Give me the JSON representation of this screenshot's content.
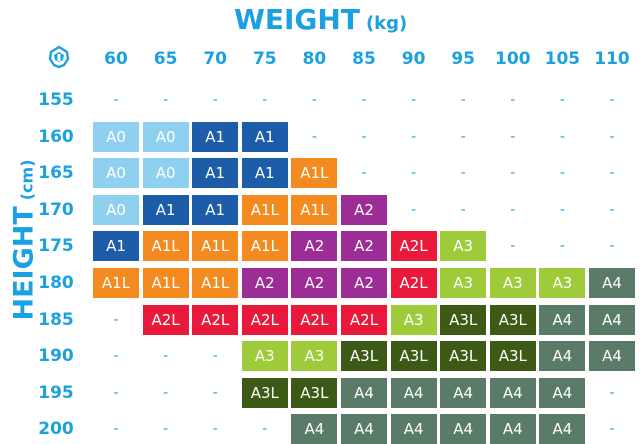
{
  "title": {
    "main": "WEIGHT",
    "unit": "(kg)"
  },
  "ytitle": {
    "main": "HEIGHT",
    "unit": "(cm)"
  },
  "logo_icon": "helmet-icon",
  "columns": [
    "60",
    "65",
    "70",
    "75",
    "80",
    "85",
    "90",
    "95",
    "100",
    "105",
    "110"
  ],
  "rows": [
    {
      "height": "155",
      "cells": [
        "-",
        "-",
        "-",
        "-",
        "-",
        "-",
        "-",
        "-",
        "-",
        "-",
        "-"
      ]
    },
    {
      "height": "160",
      "cells": [
        "A0",
        "A0",
        "A1",
        "A1",
        "-",
        "-",
        "-",
        "-",
        "-",
        "-",
        "-"
      ]
    },
    {
      "height": "165",
      "cells": [
        "A0",
        "A0",
        "A1",
        "A1",
        "A1L",
        "-",
        "-",
        "-",
        "-",
        "-",
        "-"
      ]
    },
    {
      "height": "170",
      "cells": [
        "A0",
        "A1",
        "A1",
        "A1L",
        "A1L",
        "A2",
        "-",
        "-",
        "-",
        "-",
        "-"
      ]
    },
    {
      "height": "175",
      "cells": [
        "A1",
        "A1L",
        "A1L",
        "A1L",
        "A2",
        "A2",
        "A2L",
        "A3",
        "-",
        "-",
        "-"
      ]
    },
    {
      "height": "180",
      "cells": [
        "A1L",
        "A1L",
        "A1L",
        "A2",
        "A2",
        "A2",
        "A2L",
        "A3",
        "A3",
        "A3",
        "A4"
      ]
    },
    {
      "height": "185",
      "cells": [
        "-",
        "A2L",
        "A2L",
        "A2L",
        "A2L",
        "A2L",
        "A3",
        "A3L",
        "A3L",
        "A4",
        "A4"
      ]
    },
    {
      "height": "190",
      "cells": [
        "-",
        "-",
        "-",
        "A3",
        "A3",
        "A3L",
        "A3L",
        "A3L",
        "A3L",
        "A4",
        "A4"
      ]
    },
    {
      "height": "195",
      "cells": [
        "-",
        "-",
        "-",
        "A3L",
        "A3L",
        "A4",
        "A4",
        "A4",
        "A4",
        "A4",
        "-"
      ]
    },
    {
      "height": "200",
      "cells": [
        "-",
        "-",
        "-",
        "-",
        "A4",
        "A4",
        "A4",
        "A4",
        "A4",
        "A4",
        "-"
      ]
    }
  ],
  "size_colors": {
    "A0": "#8fd0f1",
    "A1": "#1c5ca8",
    "A1L": "#f48b20",
    "A2": "#9d2d96",
    "A2L": "#e8193a",
    "A3": "#9fcb3b",
    "A3L": "#3c5a16",
    "A4": "#5b7b69"
  },
  "header_color": "#1ba1e2"
}
